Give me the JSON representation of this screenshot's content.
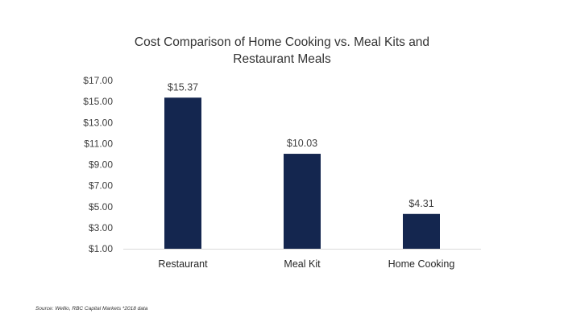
{
  "chart_data": {
    "type": "bar",
    "title_lines": [
      "Cost Comparison of Home Cooking vs. Meal Kits and",
      "Restaurant Meals"
    ],
    "categories": [
      "Restaurant",
      "Meal Kit",
      "Home Cooking"
    ],
    "values": [
      15.37,
      10.03,
      4.31
    ],
    "data_labels": [
      "$15.37",
      "$10.03",
      "$4.31"
    ],
    "y_ticks": [
      1,
      3,
      5,
      7,
      9,
      11,
      13,
      15,
      17
    ],
    "y_tick_labels": [
      "$1.00",
      "$3.00",
      "$5.00",
      "$7.00",
      "$9.00",
      "$11.00",
      "$13.00",
      "$15.00",
      "$17.00"
    ],
    "ylim": [
      1,
      17
    ],
    "xlabel": "",
    "ylabel": "",
    "grid": false,
    "bar_color": "#14264f"
  },
  "source_note": "Source: Wellio, RBC Capital Markets  *2018 data"
}
